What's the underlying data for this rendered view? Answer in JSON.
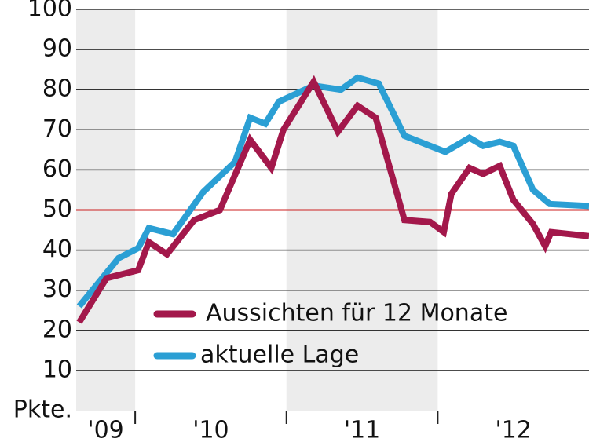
{
  "chart_data": {
    "type": "line",
    "y_label": "Pkte.",
    "xlim": [
      2009.61,
      2013.0
    ],
    "xticks": [
      2010,
      2011,
      2012
    ],
    "period_labels": [
      "'09",
      "'10",
      "'11",
      "'12"
    ],
    "ylim": [
      0,
      100
    ],
    "yticks": [
      10,
      20,
      30,
      40,
      50,
      60,
      70,
      80,
      90,
      100
    ],
    "grid": true,
    "reference_line": {
      "value": 50,
      "color": "#cc1f1f"
    },
    "legend": "lower-left",
    "series": [
      {
        "name": "Aussichten für 12 Monate",
        "color": "#a3184b",
        "x": [
          2009.63,
          2009.81,
          2010.02,
          2010.09,
          2010.21,
          2010.39,
          2010.56,
          2010.76,
          2010.9,
          2010.98,
          2011.18,
          2011.34,
          2011.47,
          2011.59,
          2011.78,
          2011.95,
          2012.04,
          2012.09,
          2012.21,
          2012.3,
          2012.41,
          2012.5,
          2012.63,
          2012.71,
          2012.75,
          2013.0
        ],
        "values": [
          22,
          33,
          35,
          42,
          39,
          47.5,
          50,
          67.5,
          60.5,
          70,
          82,
          69.5,
          76,
          73,
          47.5,
          47,
          44.5,
          54,
          60.5,
          59,
          61,
          52.5,
          46.5,
          41,
          44.5,
          43.5
        ]
      },
      {
        "name": "aktuelle Lage",
        "color": "#2b9fd4",
        "x": [
          2009.63,
          2009.89,
          2010.02,
          2010.09,
          2010.25,
          2010.45,
          2010.66,
          2010.76,
          2010.86,
          2010.95,
          2011.18,
          2011.36,
          2011.47,
          2011.61,
          2011.78,
          2012.05,
          2012.21,
          2012.3,
          2012.41,
          2012.5,
          2012.63,
          2012.74,
          2013.0
        ],
        "values": [
          26,
          38,
          40.5,
          45.5,
          44,
          54.5,
          62,
          73,
          71.5,
          77,
          81,
          80,
          83,
          81.5,
          68.5,
          64.5,
          68,
          66,
          67,
          66,
          55,
          51.5,
          51
        ]
      }
    ]
  }
}
